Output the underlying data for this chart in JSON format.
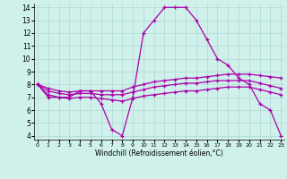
{
  "xlabel": "Windchill (Refroidissement éolien,°C)",
  "background_color": "#cff0eb",
  "line_color": "#aa00aa",
  "xlim": [
    0,
    23
  ],
  "ylim": [
    4,
    14
  ],
  "yticks": [
    4,
    5,
    6,
    7,
    8,
    9,
    10,
    11,
    12,
    13,
    14
  ],
  "xticks": [
    0,
    1,
    2,
    3,
    4,
    5,
    6,
    7,
    8,
    9,
    10,
    11,
    12,
    13,
    14,
    15,
    16,
    17,
    18,
    19,
    20,
    21,
    22,
    23
  ],
  "series": {
    "xs": [
      0,
      1,
      2,
      3,
      4,
      5,
      6,
      7,
      8,
      9,
      10,
      11,
      12,
      13,
      14,
      15,
      16,
      17,
      18,
      19,
      20,
      21,
      22,
      23
    ],
    "line1": [
      8,
      7,
      7,
      7,
      7.5,
      7.5,
      6.5,
      4.5,
      4,
      7,
      12,
      13,
      14,
      14,
      14,
      13,
      11.5,
      10,
      9.5,
      8.5,
      8,
      6.5,
      6,
      4
    ],
    "line2": [
      8,
      7.7,
      7.5,
      7.4,
      7.5,
      7.5,
      7.5,
      7.5,
      7.5,
      7.8,
      8.0,
      8.2,
      8.3,
      8.4,
      8.5,
      8.5,
      8.6,
      8.7,
      8.8,
      8.8,
      8.8,
      8.7,
      8.6,
      8.5
    ],
    "line3": [
      8,
      7.5,
      7.3,
      7.2,
      7.3,
      7.3,
      7.2,
      7.2,
      7.2,
      7.4,
      7.6,
      7.8,
      7.9,
      8.0,
      8.1,
      8.1,
      8.2,
      8.3,
      8.3,
      8.3,
      8.3,
      8.1,
      7.9,
      7.7
    ],
    "line4": [
      8,
      7.2,
      7.0,
      6.9,
      7.0,
      7.0,
      6.9,
      6.8,
      6.7,
      6.9,
      7.1,
      7.2,
      7.3,
      7.4,
      7.5,
      7.5,
      7.6,
      7.7,
      7.8,
      7.8,
      7.8,
      7.6,
      7.4,
      7.2
    ]
  }
}
